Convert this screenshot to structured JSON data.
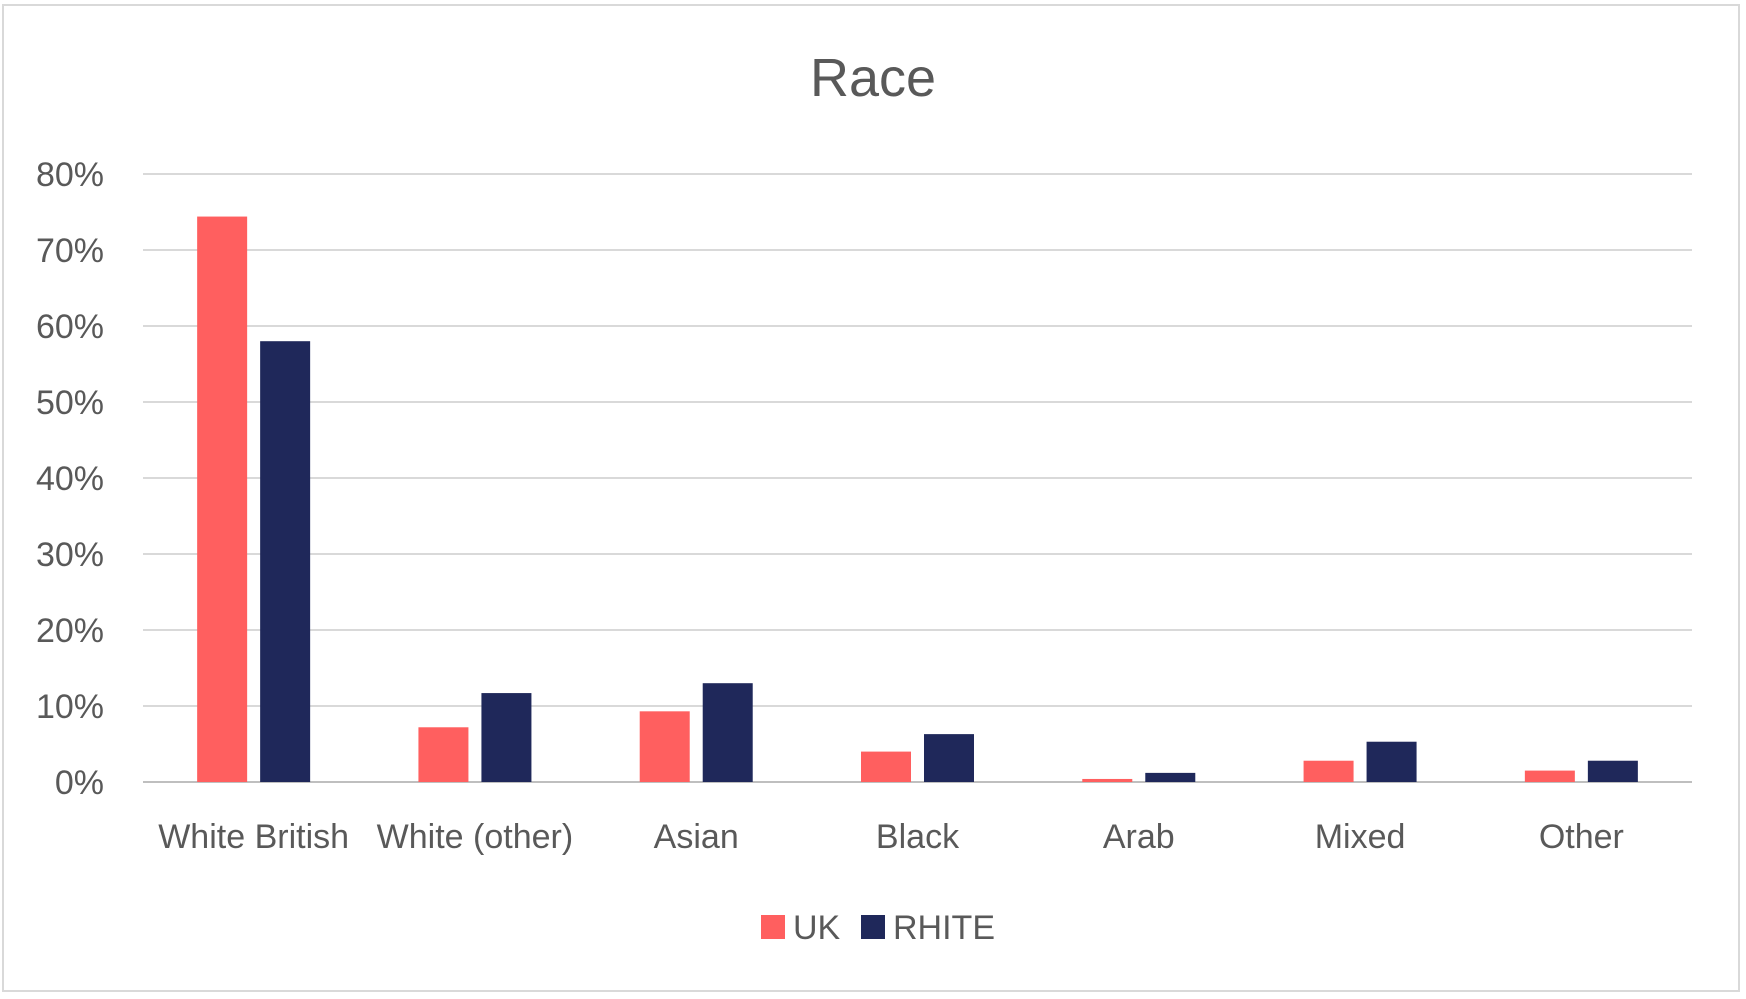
{
  "chart_data": {
    "type": "bar",
    "title": "Race",
    "xlabel": "",
    "ylabel": "",
    "ylim": [
      0,
      80
    ],
    "yticks": [
      "0%",
      "10%",
      "20%",
      "30%",
      "40%",
      "50%",
      "60%",
      "70%",
      "80%"
    ],
    "grid": true,
    "legend_position": "bottom",
    "categories": [
      "White British",
      "White (other)",
      "Asian",
      "Black",
      "Arab",
      "Mixed",
      "Other"
    ],
    "series": [
      {
        "name": "UK",
        "color": "#ff5f5f",
        "values": [
          74.4,
          7.2,
          9.3,
          4.0,
          0.4,
          2.8,
          1.5
        ]
      },
      {
        "name": "RHITE",
        "color": "#1f285a",
        "values": [
          58.0,
          11.7,
          13.0,
          6.3,
          1.2,
          5.3,
          2.8
        ]
      }
    ]
  }
}
